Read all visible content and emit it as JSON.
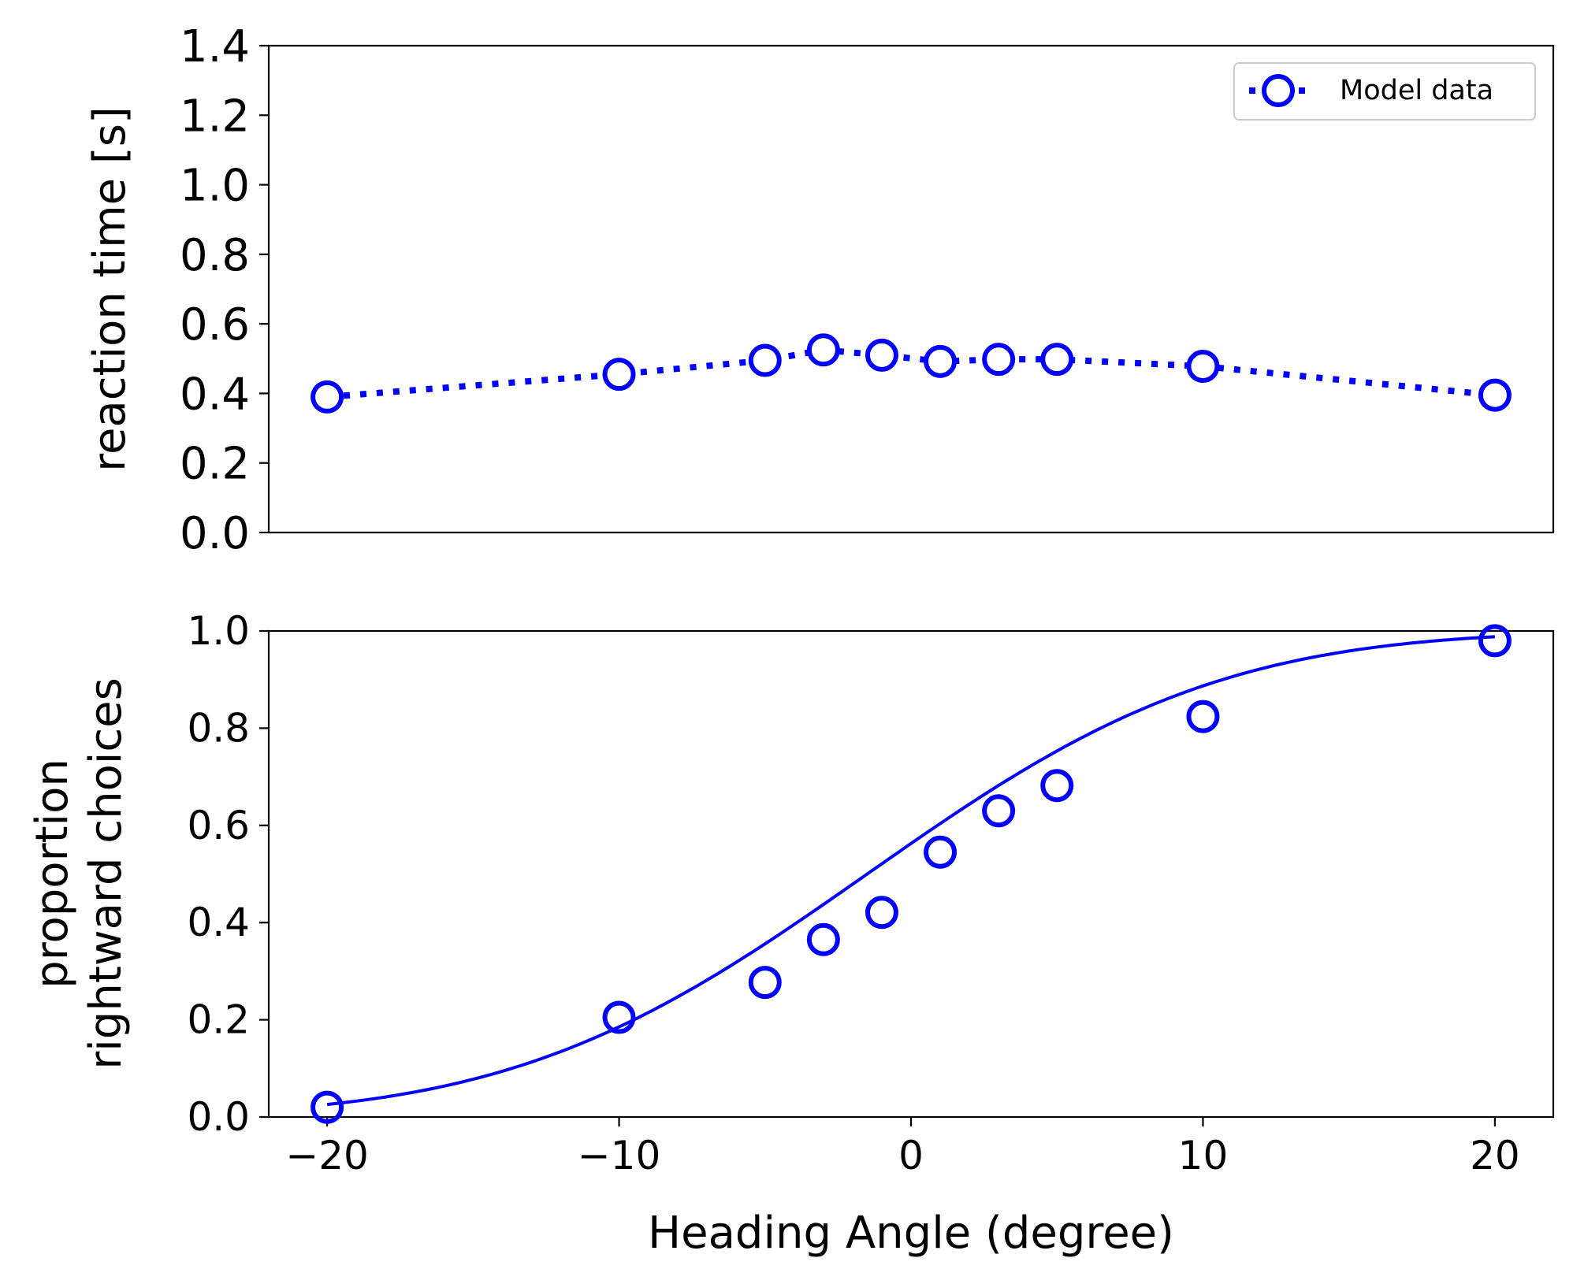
{
  "chart_data": [
    {
      "type": "line",
      "x": [
        -20,
        -10,
        -5,
        -3,
        -1,
        1,
        3,
        5,
        10,
        20
      ],
      "series": [
        {
          "name": "Model data",
          "values": [
            0.39,
            0.455,
            0.495,
            0.525,
            0.51,
            0.492,
            0.498,
            0.498,
            0.478,
            0.395
          ],
          "line_style": "dotted",
          "marker": "open-circle",
          "color": "#0000ff"
        }
      ],
      "xlim": [
        -22,
        22
      ],
      "ylim": [
        0,
        1.4
      ],
      "ylabel": "reaction time [s]",
      "yticks": [
        "0.0",
        "0.2",
        "0.4",
        "0.6",
        "0.8",
        "1.0",
        "1.2",
        "1.4"
      ],
      "legend": {
        "entries": [
          "Model data"
        ],
        "placement": "top-right"
      },
      "grid": false
    },
    {
      "type": "scatter",
      "x": [
        -20,
        -10,
        -5,
        -3,
        -1,
        1,
        3,
        5,
        10,
        20
      ],
      "series": [
        {
          "values": [
            0.02,
            0.205,
            0.277,
            0.365,
            0.421,
            0.545,
            0.63,
            0.682,
            0.824,
            0.98
          ],
          "marker": "open-circle",
          "color": "#0000ff"
        }
      ],
      "fit_curve": {
        "kind": "cumulative-gaussian",
        "mu": -1.5,
        "sigma": 9.5,
        "color": "#0000ff"
      },
      "xlim": [
        -22,
        22
      ],
      "ylim": [
        0,
        1.0
      ],
      "xlabel": "Heading Angle (degree)",
      "ylabel": [
        "proportion",
        "rightward choices"
      ],
      "xticks": [
        "−20",
        "−10",
        "0",
        "10",
        "20"
      ],
      "xtick_values": [
        -20,
        -10,
        0,
        10,
        20
      ],
      "yticks": [
        "0.0",
        "0.2",
        "0.4",
        "0.6",
        "0.8",
        "1.0"
      ],
      "grid": false
    }
  ]
}
